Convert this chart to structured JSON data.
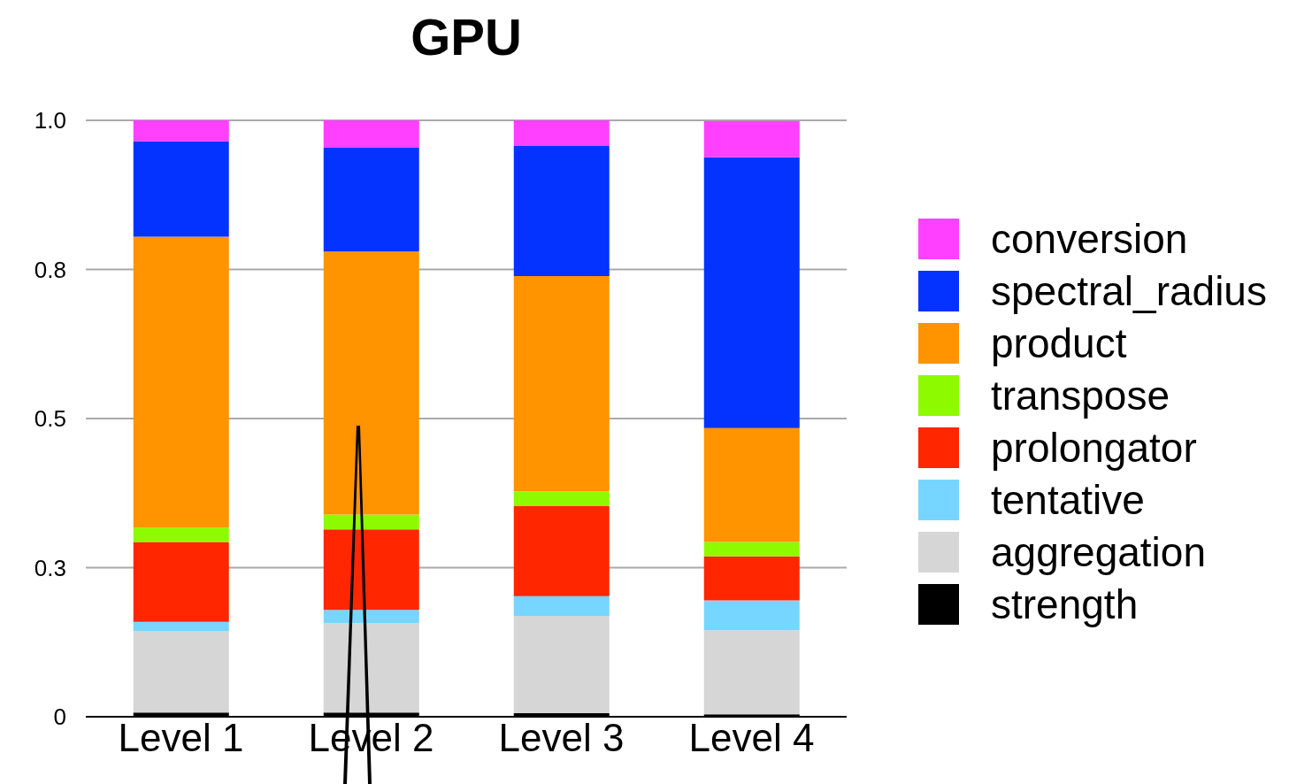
{
  "chart_data": {
    "type": "bar",
    "title": "GPU",
    "stacked": true,
    "categories": [
      "Level 1",
      "Level 2",
      "Level 3",
      "Level 4"
    ],
    "ylim": [
      0,
      1
    ],
    "yticks": [
      0,
      {
        "value": 0.25,
        "label": "0.3"
      },
      0.5,
      {
        "value": 0.75,
        "label": "0.8"
      },
      {
        "value": 1,
        "label": "1.0"
      }
    ],
    "grid": "y",
    "legend": "right",
    "series": [
      {
        "name": "strength",
        "color": "#000000",
        "values": [
          0.007,
          0.007,
          0.006,
          0.004
        ]
      },
      {
        "name": "aggregation",
        "color": "#d6d6d6",
        "values": [
          0.137,
          0.15,
          0.163,
          0.141
        ]
      },
      {
        "name": "tentative",
        "color": "#76d6ff",
        "values": [
          0.015,
          0.022,
          0.033,
          0.05
        ]
      },
      {
        "name": "prolongator",
        "color": "#ff2600",
        "values": [
          0.134,
          0.135,
          0.151,
          0.074
        ]
      },
      {
        "name": "transpose",
        "color": "#8efa00",
        "values": [
          0.024,
          0.025,
          0.025,
          0.024
        ]
      },
      {
        "name": "product",
        "color": "#ff9300",
        "values": [
          0.488,
          0.441,
          0.361,
          0.191
        ]
      },
      {
        "name": "spectral_radius",
        "color": "#0433ff",
        "values": [
          0.16,
          0.174,
          0.218,
          0.454
        ]
      },
      {
        "name": "conversion",
        "color": "#ff40ff",
        "values": [
          0.035,
          0.046,
          0.043,
          0.061
        ]
      }
    ]
  }
}
